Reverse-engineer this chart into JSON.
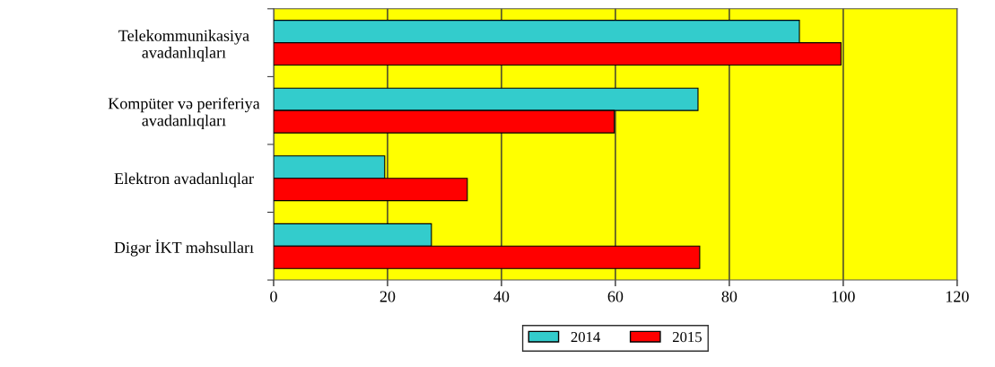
{
  "chart_data": {
    "type": "bar",
    "orientation": "horizontal",
    "categories": [
      "Telekommunikasiya\navadanlıqları",
      "Kompüter və periferiya\navadanlıqları",
      "Elektron avadanlıqlar",
      "Digər İKT məhsulları"
    ],
    "series": [
      {
        "name": "2014",
        "color": "#33cccc",
        "values": [
          92.3,
          74.5,
          19.5,
          27.7
        ]
      },
      {
        "name": "2015",
        "color": "#ff0000",
        "values": [
          99.6,
          59.8,
          34,
          74.8
        ]
      }
    ],
    "xlim": [
      0,
      120
    ],
    "xticks": [
      0,
      20,
      40,
      60,
      80,
      100,
      120
    ],
    "grid": "x",
    "legend": "bottom"
  }
}
